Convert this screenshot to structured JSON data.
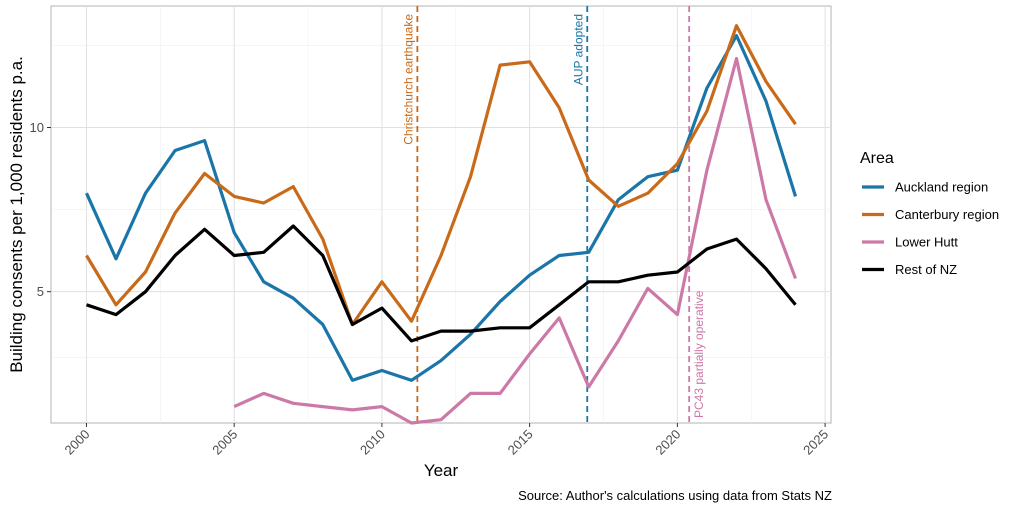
{
  "chart_data": {
    "type": "line",
    "title": "",
    "xlabel": "Year",
    "ylabel": "Building consents per 1,000 residents p.a.",
    "caption": "Source: Author's calculations using data from Stats NZ",
    "xlim": [
      1998.8,
      2025.2
    ],
    "ylim": [
      1.0,
      13.7
    ],
    "x_ticks": [
      2000,
      2005,
      2010,
      2015,
      2020,
      2025
    ],
    "y_ticks": [
      5,
      10
    ],
    "grid": true,
    "legend": {
      "title": "Area",
      "position": "right"
    },
    "series": [
      {
        "name": "Auckland region",
        "color": "#1a75a8",
        "x": [
          2000,
          2001,
          2002,
          2003,
          2004,
          2005,
          2006,
          2007,
          2008,
          2009,
          2010,
          2011,
          2012,
          2013,
          2014,
          2015,
          2016,
          2017,
          2018,
          2019,
          2020,
          2021,
          2022,
          2023,
          2024
        ],
        "values": [
          8.0,
          6.0,
          8.0,
          9.3,
          9.6,
          6.8,
          5.3,
          4.8,
          4.0,
          2.3,
          2.6,
          2.3,
          2.9,
          3.7,
          4.7,
          5.5,
          6.1,
          6.2,
          7.8,
          8.5,
          8.7,
          11.2,
          12.8,
          10.8,
          7.9
        ]
      },
      {
        "name": "Canterbury region",
        "color": "#c96a1a",
        "x": [
          2000,
          2001,
          2002,
          2003,
          2004,
          2005,
          2006,
          2007,
          2008,
          2009,
          2010,
          2011,
          2012,
          2013,
          2014,
          2015,
          2016,
          2017,
          2018,
          2019,
          2020,
          2021,
          2022,
          2023,
          2024
        ],
        "values": [
          6.1,
          4.6,
          5.6,
          7.4,
          8.6,
          7.9,
          7.7,
          8.2,
          6.6,
          4.0,
          5.3,
          4.1,
          6.1,
          8.5,
          11.9,
          12.0,
          10.6,
          8.4,
          7.6,
          8.0,
          8.9,
          10.5,
          13.1,
          11.4,
          10.1
        ]
      },
      {
        "name": "Lower Hutt",
        "color": "#cc79a7",
        "x": [
          2005,
          2006,
          2007,
          2008,
          2009,
          2010,
          2011,
          2012,
          2013,
          2014,
          2015,
          2016,
          2017,
          2018,
          2019,
          2020,
          2021,
          2022,
          2023,
          2024
        ],
        "values": [
          1.5,
          1.9,
          1.6,
          1.5,
          1.4,
          1.5,
          1.0,
          1.1,
          1.9,
          1.9,
          3.1,
          4.2,
          2.1,
          3.5,
          5.1,
          4.3,
          8.7,
          12.1,
          7.8,
          5.4
        ]
      },
      {
        "name": "Rest of NZ",
        "color": "#000000",
        "x": [
          2000,
          2001,
          2002,
          2003,
          2004,
          2005,
          2006,
          2007,
          2008,
          2009,
          2010,
          2011,
          2012,
          2013,
          2014,
          2015,
          2016,
          2017,
          2018,
          2019,
          2020,
          2021,
          2022,
          2023,
          2024
        ],
        "values": [
          4.6,
          4.3,
          5.0,
          6.1,
          6.9,
          6.1,
          6.2,
          7.0,
          6.1,
          4.0,
          4.5,
          3.5,
          3.8,
          3.8,
          3.9,
          3.9,
          4.6,
          5.3,
          5.3,
          5.5,
          5.6,
          6.3,
          6.6,
          5.7,
          4.6
        ]
      }
    ],
    "annotations": [
      {
        "x": 2011.2,
        "label": "Christchurch earthquake",
        "color": "#c96a1a",
        "position": "top"
      },
      {
        "x": 2016.95,
        "label": "AUP adopted",
        "color": "#1a75a8",
        "position": "top"
      },
      {
        "x": 2020.4,
        "label": "PC43 partially operative",
        "color": "#cc79a7",
        "position": "bottom"
      }
    ]
  }
}
